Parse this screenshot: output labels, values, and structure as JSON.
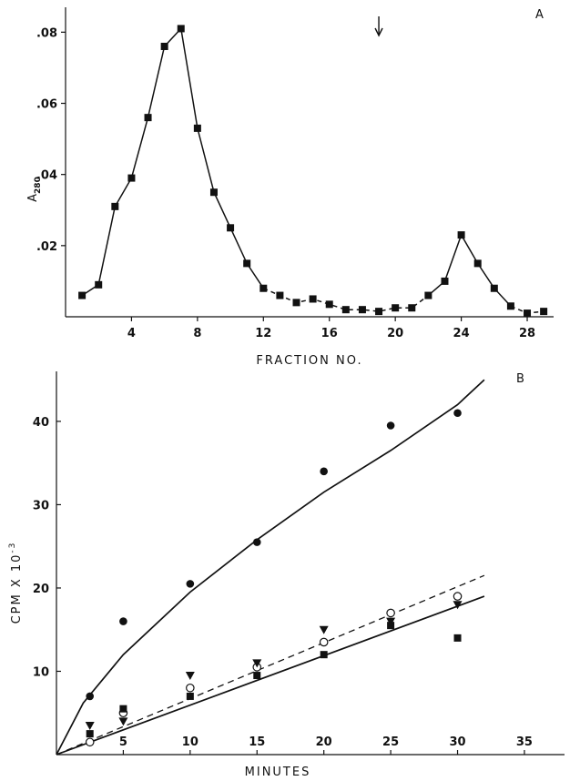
{
  "chart_data": [
    {
      "panel": "A",
      "type": "line",
      "xlabel": "FRACTION NO.",
      "ylabel": "A",
      "ylabel_sub": "280",
      "xticks": [
        4,
        8,
        12,
        16,
        20,
        24,
        28
      ],
      "yticks": [
        ".02",
        ".04",
        ".06",
        ".08"
      ],
      "ytick_values": [
        0.02,
        0.04,
        0.06,
        0.08
      ],
      "xlim": [
        0,
        29.6
      ],
      "ylim": [
        0,
        0.087
      ],
      "arrow_at_fraction": 19,
      "series": [
        {
          "marker": "filled-square",
          "x": [
            1,
            2,
            3,
            4,
            5,
            6,
            7,
            8,
            9,
            10,
            11,
            12,
            13,
            14,
            15,
            16,
            17,
            18,
            19,
            20,
            21,
            22,
            23,
            24,
            25,
            26,
            27,
            28,
            29
          ],
          "y": [
            0.006,
            0.009,
            0.031,
            0.039,
            0.056,
            0.076,
            0.081,
            0.053,
            0.035,
            0.025,
            0.015,
            0.008,
            0.006,
            0.004,
            0.005,
            0.0035,
            0.002,
            0.002,
            0.0015,
            0.0025,
            0.0025,
            0.006,
            0.01,
            0.023,
            0.015,
            0.008,
            0.003,
            0.001,
            0.0015
          ],
          "solid_segments": [
            [
              1,
              12
            ],
            [
              22,
              27
            ]
          ],
          "dashed_segments": [
            [
              12,
              22
            ],
            [
              27,
              29
            ]
          ]
        }
      ]
    },
    {
      "panel": "B",
      "type": "scatter",
      "xlabel": "MINUTES",
      "ylabel": "CPM X 10",
      "ylabel_sup": "-3",
      "xticks": [
        5,
        10,
        15,
        20,
        25,
        30,
        35
      ],
      "yticks": [
        10,
        20,
        30,
        40
      ],
      "xlim": [
        0,
        38
      ],
      "ylim": [
        0,
        46
      ],
      "series": [
        {
          "marker": "filled-circle",
          "x": [
            2.5,
            5,
            10,
            15,
            20,
            25,
            30
          ],
          "y": [
            7,
            16,
            20.5,
            25.5,
            34,
            39.5,
            41
          ]
        },
        {
          "marker": "open-circle",
          "x": [
            2.5,
            5,
            10,
            15,
            20,
            25,
            30
          ],
          "y": [
            1.5,
            5,
            8,
            10.5,
            13.5,
            17,
            19
          ]
        },
        {
          "marker": "filled-triangle-down",
          "x": [
            2.5,
            5,
            10,
            15,
            20,
            25,
            30
          ],
          "y": [
            3.5,
            4,
            9.5,
            11,
            15,
            16,
            18
          ]
        },
        {
          "marker": "filled-square",
          "x": [
            2.5,
            5,
            10,
            15,
            20,
            25,
            30
          ],
          "y": [
            2.5,
            5.5,
            7,
            9.5,
            12,
            15.5,
            14
          ]
        }
      ],
      "fit_lines": [
        {
          "style": "solid",
          "x": [
            0,
            2,
            5,
            10,
            15,
            20,
            25,
            30,
            32
          ],
          "y": [
            0,
            6.2,
            12,
            19.5,
            25.8,
            31.5,
            36.5,
            42,
            45
          ]
        },
        {
          "style": "dashed",
          "x": [
            0,
            32
          ],
          "y": [
            0,
            21.5
          ]
        },
        {
          "style": "solid",
          "x": [
            0,
            32
          ],
          "y": [
            0,
            19
          ]
        }
      ]
    }
  ]
}
